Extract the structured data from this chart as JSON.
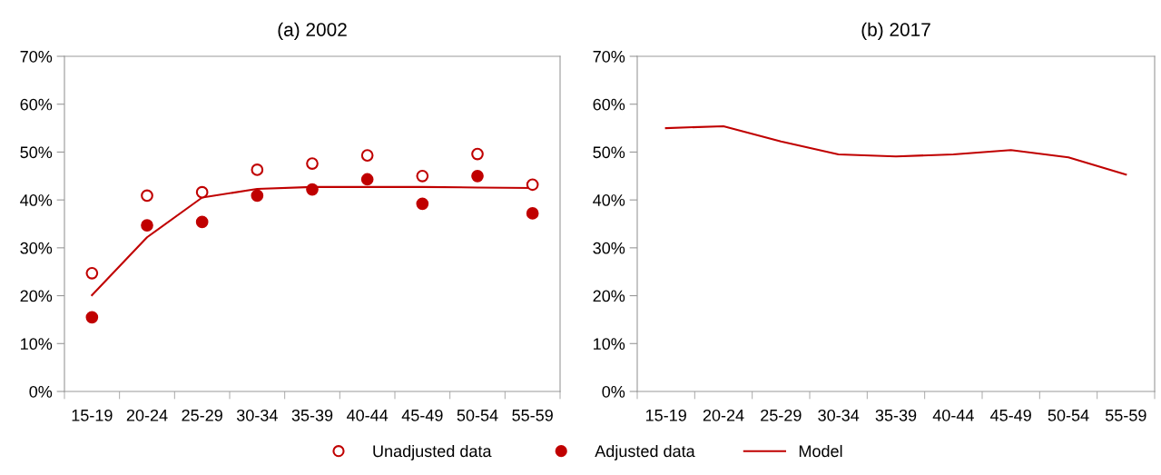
{
  "chart_data": [
    {
      "type": "scatter",
      "title": "(a) 2002",
      "categories": [
        "15-19",
        "20-24",
        "25-29",
        "30-34",
        "35-39",
        "40-44",
        "45-49",
        "50-54",
        "55-59"
      ],
      "ylim": [
        0,
        70
      ],
      "yticks": [
        {
          "value": 0,
          "label": "0%"
        },
        {
          "value": 10,
          "label": "10%"
        },
        {
          "value": 20,
          "label": "20%"
        },
        {
          "value": 30,
          "label": "30%"
        },
        {
          "value": 40,
          "label": "40%"
        },
        {
          "value": 50,
          "label": "50%"
        },
        {
          "value": 60,
          "label": "60%"
        },
        {
          "value": 70,
          "label": "70%"
        }
      ],
      "grid": false,
      "legend": "bottom",
      "series": [
        {
          "name": "Unadjusted data",
          "marker": "circle",
          "color": "#c00000",
          "values": [
            24.7,
            40.9,
            41.6,
            46.3,
            47.6,
            49.3,
            45.0,
            49.6,
            43.2
          ]
        },
        {
          "name": "Adjusted data",
          "marker": "circle",
          "color": "#c00000",
          "values": [
            15.5,
            34.7,
            35.4,
            40.9,
            42.2,
            44.3,
            39.2,
            45.0,
            37.2
          ]
        },
        {
          "name": "Model",
          "type": "line",
          "marker": "none",
          "line_style": "solid",
          "color": "#c00000",
          "values": [
            20.1,
            32.2,
            40.5,
            42.3,
            42.7,
            42.7,
            42.7,
            42.6,
            42.5
          ]
        }
      ]
    },
    {
      "type": "line",
      "title": "(b) 2017",
      "categories": [
        "15-19",
        "20-24",
        "25-29",
        "30-34",
        "35-39",
        "40-44",
        "45-49",
        "50-54",
        "55-59"
      ],
      "ylim": [
        0,
        70
      ],
      "yticks": [
        {
          "value": 0,
          "label": "0%"
        },
        {
          "value": 10,
          "label": "10%"
        },
        {
          "value": 20,
          "label": "20%"
        },
        {
          "value": 30,
          "label": "30%"
        },
        {
          "value": 40,
          "label": "40%"
        },
        {
          "value": 50,
          "label": "50%"
        },
        {
          "value": 60,
          "label": "60%"
        },
        {
          "value": 70,
          "label": "70%"
        }
      ],
      "grid": false,
      "legend": "bottom",
      "series": [
        {
          "name": "Model",
          "marker": "none",
          "line_style": "solid",
          "color": "#c00000",
          "values": [
            55.0,
            55.4,
            52.2,
            49.5,
            49.1,
            49.5,
            50.4,
            48.9,
            45.3
          ]
        }
      ]
    }
  ]
}
